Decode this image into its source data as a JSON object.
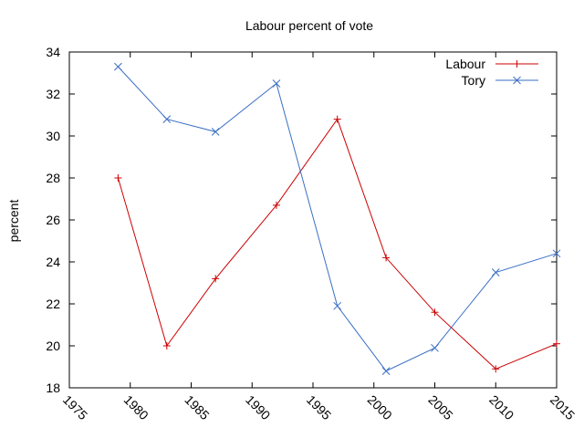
{
  "chart_data": {
    "type": "line",
    "title": "Labour percent of vote",
    "xlabel": "",
    "ylabel": "percent",
    "xlim": [
      1975,
      2015
    ],
    "ylim": [
      18,
      34
    ],
    "xticks": [
      1975,
      1980,
      1985,
      1990,
      1995,
      2000,
      2005,
      2010,
      2015
    ],
    "yticks": [
      18,
      20,
      22,
      24,
      26,
      28,
      30,
      32,
      34
    ],
    "grid": false,
    "legend": "top-right",
    "series": [
      {
        "name": "Labour",
        "color": "#cc0000",
        "marker": "plus",
        "x": [
          1979,
          1983,
          1987,
          1992,
          1997,
          2001,
          2005,
          2010,
          2015
        ],
        "y": [
          28.0,
          20.0,
          23.2,
          26.7,
          30.8,
          24.2,
          21.6,
          18.9,
          20.1
        ]
      },
      {
        "name": "Tory",
        "color": "#3a6fc4",
        "marker": "x",
        "x": [
          1979,
          1983,
          1987,
          1992,
          1997,
          2001,
          2005,
          2010,
          2015
        ],
        "y": [
          33.3,
          30.8,
          30.2,
          32.5,
          21.9,
          18.8,
          19.9,
          23.5,
          24.4
        ]
      }
    ]
  }
}
